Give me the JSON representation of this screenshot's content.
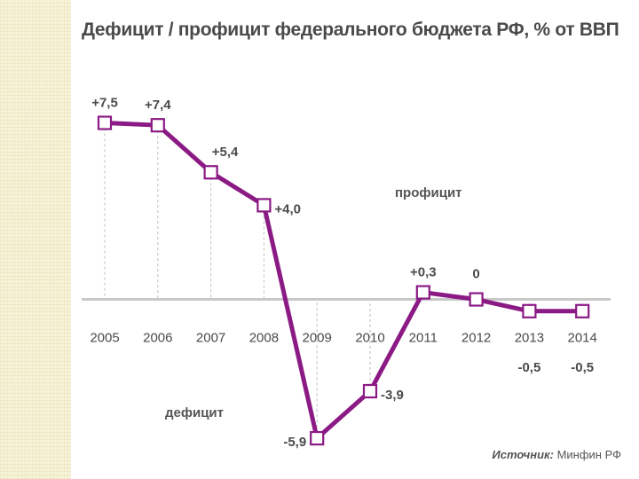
{
  "title": "Дефицит / профицит федерального бюджета РФ, % от ВВП",
  "source": {
    "label": "Источник:",
    "name": "Минфин РФ"
  },
  "colors": {
    "line": "#8b1a85",
    "text": "#4a4a4a",
    "axis": "#c8c8c8",
    "strip": "#f6f3d8"
  },
  "chart_data": {
    "type": "line",
    "categories": [
      "2005",
      "2006",
      "2007",
      "2008",
      "2009",
      "2010",
      "2011",
      "2012",
      "2013",
      "2014"
    ],
    "series": [
      {
        "values": [
          7.5,
          7.4,
          5.4,
          4.0,
          -5.9,
          -3.9,
          0.3,
          0,
          -0.5,
          -0.5
        ],
        "labels": [
          "+7,5",
          "+7,4",
          "+5,4",
          "+4,0",
          "-5,9",
          "-3,9",
          "+0,3",
          "0",
          "-0,5",
          "-0,5"
        ]
      }
    ],
    "ylim": [
      -6.5,
      8.5
    ],
    "annotations": {
      "surplus": "профицит",
      "deficit": "дефицит"
    },
    "grid": false
  }
}
